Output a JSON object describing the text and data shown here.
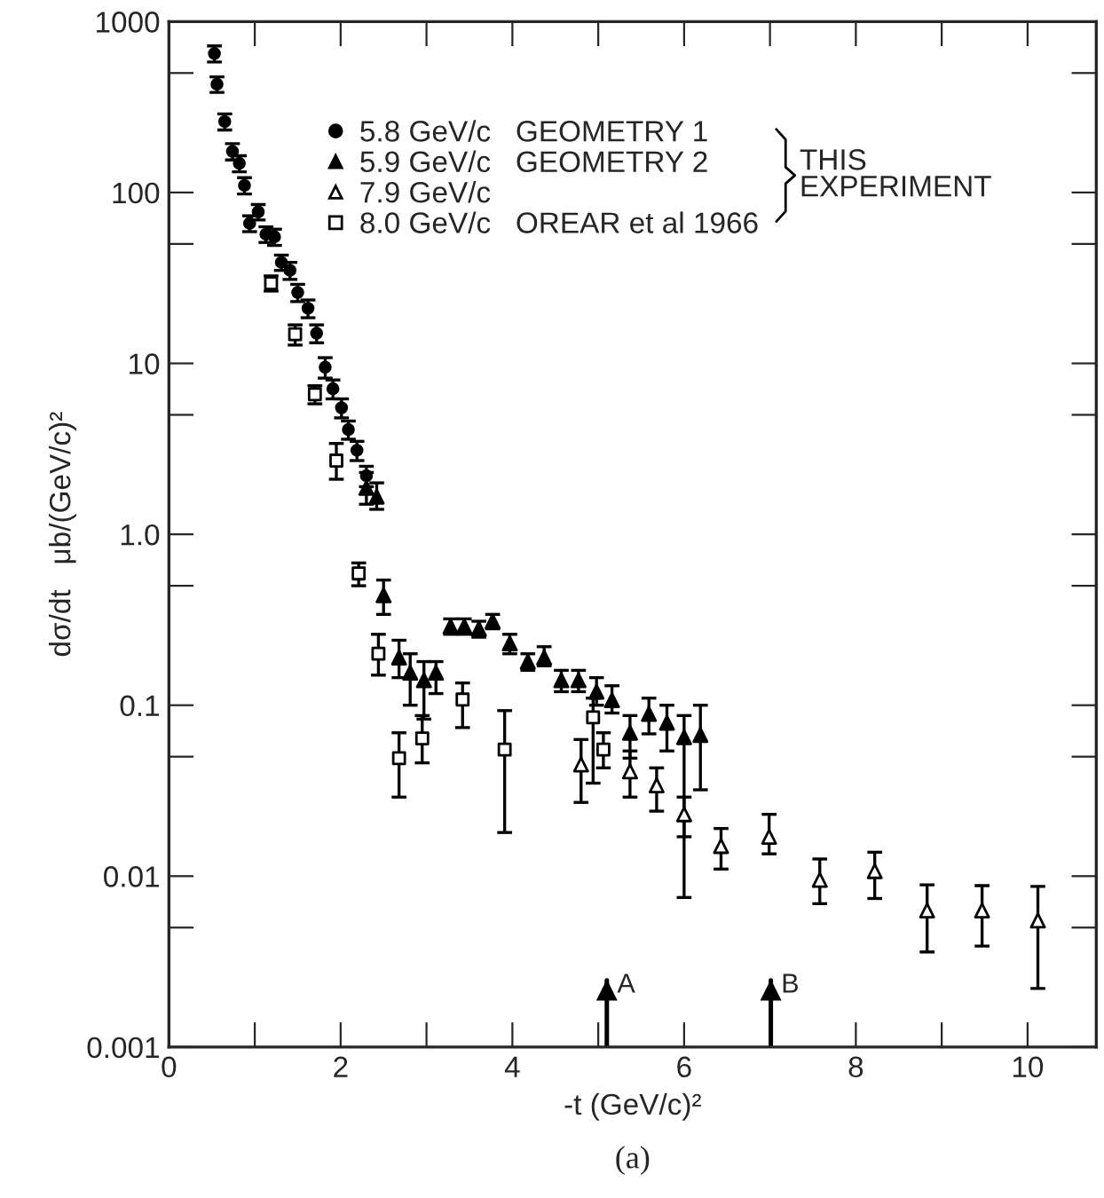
{
  "chart_data": {
    "type": "scatter",
    "xlabel": "-t (GeV/c)²",
    "ylabel": "dσ/dt   μb/(GeV/c)²",
    "log": "y",
    "xlim": [
      0,
      10.8
    ],
    "ylim": [
      0.001,
      1000
    ],
    "xticks": [
      0,
      {
        "value": 1,
        "label": null
      },
      2,
      {
        "value": 3,
        "label": null
      },
      4,
      {
        "value": 5,
        "label": null
      },
      6,
      {
        "value": 7,
        "label": null
      },
      8,
      {
        "value": 9,
        "label": null
      },
      10
    ],
    "yticks": [
      0.001,
      {
        "value": 0.005,
        "label": null
      },
      0.01,
      {
        "value": 0.05,
        "label": null
      },
      0.1,
      {
        "value": 0.5,
        "label": null
      },
      {
        "value": 1,
        "label": "1.0"
      },
      {
        "value": 5,
        "label": null
      },
      10,
      {
        "value": 50,
        "label": null
      },
      100,
      {
        "value": 500,
        "label": null
      },
      1000
    ],
    "grid": false,
    "legend": "top",
    "ref_lines": [
      {
        "axis": "x",
        "value": 5.1,
        "label": "A"
      },
      {
        "axis": "x",
        "value": 7.01,
        "label": "B"
      }
    ],
    "series": [
      {
        "name": "5.8 GeV/c   GEOMETRY 1",
        "color": "#000000",
        "marker": "circle",
        "x": [
          0.53,
          0.56,
          0.65,
          0.74,
          0.82,
          0.88,
          0.94,
          1.04,
          1.13,
          1.23,
          1.31,
          1.41,
          1.5,
          1.62,
          1.72,
          1.82,
          1.91,
          2.01,
          2.09,
          2.19,
          2.3
        ],
        "values": [
          650,
          430,
          260,
          174,
          148,
          110,
          66,
          77,
          57,
          55,
          39,
          35,
          26,
          21,
          15,
          9.5,
          7.1,
          5.5,
          4.1,
          3.1,
          2.2
        ],
        "errors": [
          70,
          45,
          28,
          19,
          16,
          12,
          7,
          8,
          6,
          6,
          4,
          4,
          3,
          2.5,
          1.8,
          1.3,
          0.9,
          0.7,
          0.5,
          0.4,
          0.3
        ]
      },
      {
        "name": "5.9 GeV/c   GEOMETRY 2",
        "color": "#000000",
        "marker": "triangle",
        "x": [
          2.3,
          2.42,
          2.5,
          2.68,
          2.81,
          2.97,
          3.11,
          3.28,
          3.44,
          3.61,
          3.77,
          3.97,
          4.18,
          4.37,
          4.57,
          4.77,
          4.98,
          5.16,
          5.37,
          5.59,
          5.8,
          6.0,
          6.19
        ],
        "values": [
          1.87,
          1.66,
          0.44,
          0.19,
          0.155,
          0.14,
          0.155,
          0.29,
          0.29,
          0.28,
          0.31,
          0.23,
          0.18,
          0.19,
          0.14,
          0.14,
          0.12,
          0.107,
          0.069,
          0.089,
          0.079,
          0.065,
          0.067
        ],
        "errors": [
          [
            1.5,
            2.3
          ],
          [
            1.4,
            2.0
          ],
          [
            0.34,
            0.54
          ],
          [
            0.145,
            0.24
          ],
          [
            0.1,
            0.2
          ],
          [
            0.083,
            0.18
          ],
          [
            0.117,
            0.18
          ],
          [
            0.26,
            0.32
          ],
          [
            0.26,
            0.32
          ],
          [
            0.25,
            0.31
          ],
          [
            0.28,
            0.34
          ],
          [
            0.2,
            0.26
          ],
          [
            0.16,
            0.2
          ],
          [
            0.17,
            0.22
          ],
          [
            0.12,
            0.16
          ],
          [
            0.12,
            0.16
          ],
          [
            0.1,
            0.145
          ],
          [
            0.09,
            0.13
          ],
          [
            0.049,
            0.087
          ],
          [
            0.068,
            0.11
          ],
          [
            0.054,
            0.1
          ],
          [
            0.0075,
            0.087
          ],
          [
            0.032,
            0.1
          ]
        ]
      },
      {
        "name": "7.9 GeV/c",
        "color": "#000000",
        "marker": "triangle",
        "x": [
          4.8,
          5.37,
          5.68,
          6.0,
          6.43,
          6.99,
          7.58,
          8.22,
          8.83,
          9.47,
          10.12
        ],
        "values": [
          0.045,
          0.041,
          0.034,
          0.023,
          0.015,
          0.017,
          0.0095,
          0.0107,
          0.0063,
          0.0063,
          0.0055
        ],
        "errors": [
          [
            0.027,
            0.063
          ],
          [
            0.029,
            0.054
          ],
          [
            0.024,
            0.043
          ],
          [
            0.017,
            0.029
          ],
          [
            0.011,
            0.019
          ],
          [
            0.0135,
            0.023
          ],
          [
            0.0069,
            0.0126
          ],
          [
            0.0074,
            0.0138
          ],
          [
            0.0036,
            0.0089
          ],
          [
            0.0039,
            0.0088
          ],
          [
            0.0022,
            0.0087
          ]
        ]
      },
      {
        "name": "8.0 GeV/c   OREAR et al 1966",
        "color": "#000000",
        "marker": "square",
        "x": [
          1.19,
          1.47,
          1.7,
          1.95,
          2.21,
          2.44,
          2.68,
          2.95,
          3.42,
          3.91,
          4.94,
          5.06
        ],
        "values": [
          29.5,
          14.8,
          6.6,
          2.7,
          0.59,
          0.2,
          0.049,
          0.064,
          0.108,
          0.055,
          0.085,
          0.055
        ],
        "errors": [
          3,
          2,
          0.8,
          [
            2.1,
            3.4
          ],
          [
            0.5,
            0.68
          ],
          [
            0.15,
            0.26
          ],
          [
            0.029,
            0.069
          ],
          [
            0.046,
            0.087
          ],
          [
            0.074,
            0.135
          ],
          [
            0.018,
            0.093
          ],
          [
            0.035,
            0.11
          ],
          [
            0.043,
            0.069
          ]
        ]
      }
    ],
    "annotations": [
      "THIS\nEXPERIMENT",
      "(a)"
    ]
  }
}
